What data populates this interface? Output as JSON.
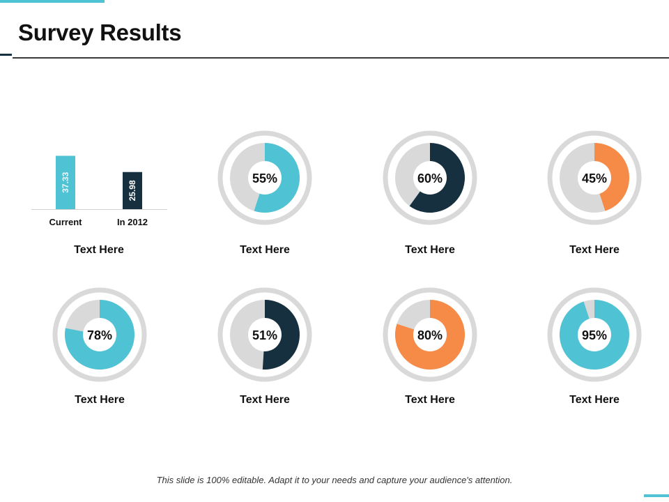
{
  "slide": {
    "title": "Survey Results",
    "footer": "This slide is 100% editable. Adapt it to your needs and capture your audience's attention."
  },
  "colors": {
    "teal": "#4fc3d4",
    "navy": "#16303f",
    "orange": "#f58b46",
    "track": "#d9d9d9"
  },
  "cards": [
    {
      "label": "Text Here"
    },
    {
      "label": "Text Here"
    },
    {
      "label": "Text Here"
    },
    {
      "label": "Text Here"
    },
    {
      "label": "Text Here"
    },
    {
      "label": "Text Here"
    },
    {
      "label": "Text Here"
    },
    {
      "label": "Text Here"
    }
  ],
  "chart_data": [
    {
      "type": "bar",
      "categories": [
        "Current",
        "In 2012"
      ],
      "values": [
        37.33,
        25.98
      ],
      "value_labels": [
        "37.33",
        "25.98"
      ],
      "colors": [
        "#4fc3d4",
        "#16303f"
      ]
    },
    {
      "type": "pie",
      "variant": "donut",
      "value": 55,
      "label": "55%",
      "color": "#4fc3d4"
    },
    {
      "type": "pie",
      "variant": "donut",
      "value": 60,
      "label": "60%",
      "color": "#16303f"
    },
    {
      "type": "pie",
      "variant": "donut",
      "value": 45,
      "label": "45%",
      "color": "#f58b46"
    },
    {
      "type": "pie",
      "variant": "donut",
      "value": 78,
      "label": "78%",
      "color": "#4fc3d4"
    },
    {
      "type": "pie",
      "variant": "donut",
      "value": 51,
      "label": "51%",
      "color": "#16303f"
    },
    {
      "type": "pie",
      "variant": "donut",
      "value": 80,
      "label": "80%",
      "color": "#f58b46"
    },
    {
      "type": "pie",
      "variant": "donut",
      "value": 95,
      "label": "95%",
      "color": "#4fc3d4"
    }
  ]
}
